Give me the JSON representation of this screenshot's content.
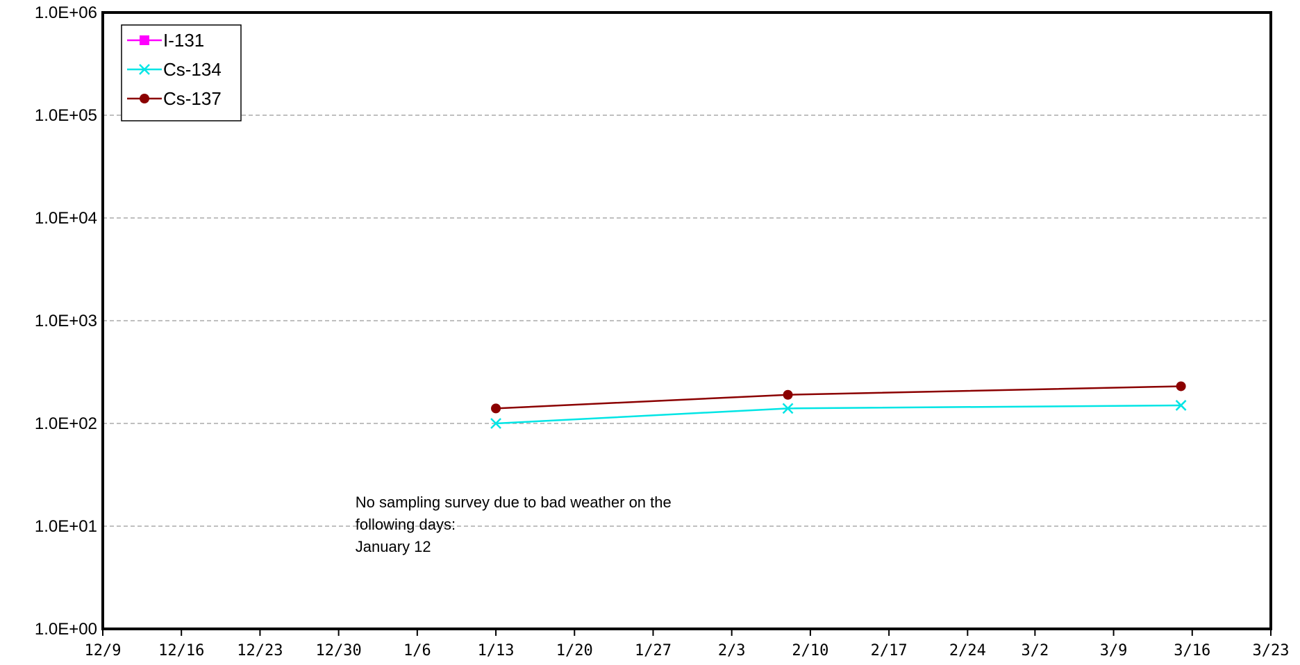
{
  "chart_data": {
    "type": "line",
    "title": "",
    "xlabel": "",
    "ylabel": "",
    "x_axis": {
      "range": [
        "2022-12-09",
        "2023-03-23"
      ],
      "tick_labels": [
        "12/9",
        "12/16",
        "12/23",
        "12/30",
        "1/6",
        "1/13",
        "1/20",
        "1/27",
        "2/3",
        "2/10",
        "2/17",
        "2/24",
        "3/2",
        "3/9",
        "3/16",
        "3/23"
      ],
      "tick_dates": [
        "2022-12-09",
        "2022-12-16",
        "2022-12-23",
        "2022-12-30",
        "2023-01-06",
        "2023-01-13",
        "2023-01-20",
        "2023-01-27",
        "2023-02-03",
        "2023-02-10",
        "2023-02-17",
        "2023-02-24",
        "2023-03-02",
        "2023-03-09",
        "2023-03-16",
        "2023-03-23"
      ]
    },
    "y_axis": {
      "scale": "log",
      "range": [
        1,
        1000000
      ],
      "tick_values": [
        1,
        10,
        100,
        1000,
        10000,
        100000,
        1000000
      ],
      "tick_labels": [
        "1.0E+00",
        "1.0E+01",
        "1.0E+02",
        "1.0E+03",
        "1.0E+04",
        "1.0E+05",
        "1.0E+06"
      ]
    },
    "grid": "horizontal dashed",
    "legend": "top-left",
    "series": [
      {
        "name": "I-131",
        "color": "#ff00ff",
        "marker": "square",
        "points": []
      },
      {
        "name": "Cs-134",
        "color": "#00e5e5",
        "marker": "x",
        "points": [
          {
            "date": "2023-01-13",
            "value": 100
          },
          {
            "date": "2023-02-08",
            "value": 140
          },
          {
            "date": "2023-03-15",
            "value": 150
          }
        ]
      },
      {
        "name": "Cs-137",
        "color": "#8b0000",
        "marker": "circle",
        "points": [
          {
            "date": "2023-01-13",
            "value": 140
          },
          {
            "date": "2023-02-08",
            "value": 190
          },
          {
            "date": "2023-03-15",
            "value": 230
          }
        ]
      }
    ],
    "annotation": {
      "lines": [
        "No sampling survey due to bad weather on the",
        "following days:",
        "January 12"
      ],
      "anchor": {
        "date": "2022-12-31",
        "value": 15
      }
    }
  }
}
